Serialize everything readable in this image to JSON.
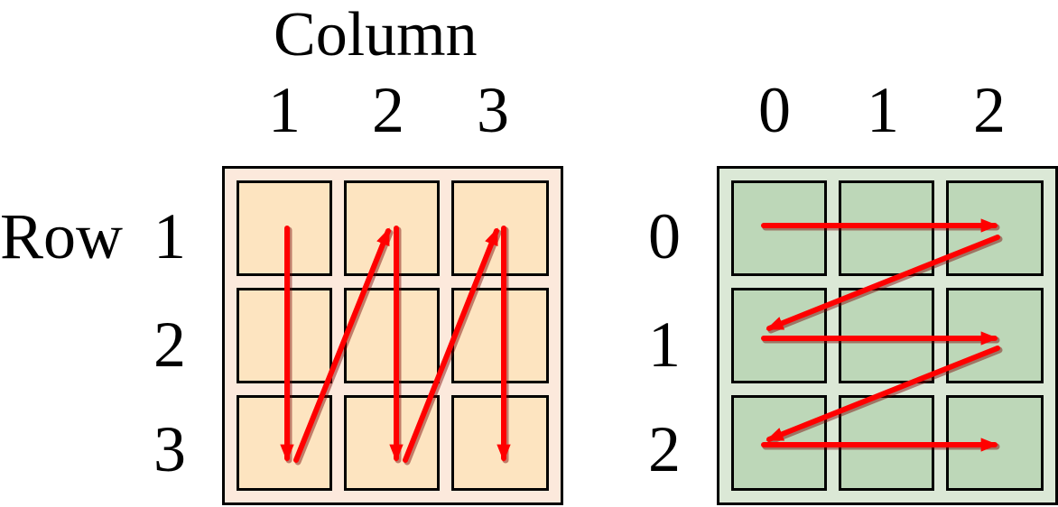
{
  "left_panel": {
    "column_heading": "Column",
    "column_labels": [
      "1",
      "2",
      "3"
    ],
    "row_heading": "Row",
    "row_labels": [
      "1",
      "2",
      "3"
    ],
    "colors": {
      "frame_fill": "#fce9dc",
      "cell_fill": "#fde4c0"
    }
  },
  "right_panel": {
    "column_labels": [
      "0",
      "1",
      "2"
    ],
    "row_labels": [
      "0",
      "1",
      "2"
    ],
    "colors": {
      "frame_fill": "#dbe8d6",
      "cell_fill": "#bdd7b8"
    }
  },
  "arrow_color": "#ff0000",
  "arrow_shadow_color": "#7a0000"
}
